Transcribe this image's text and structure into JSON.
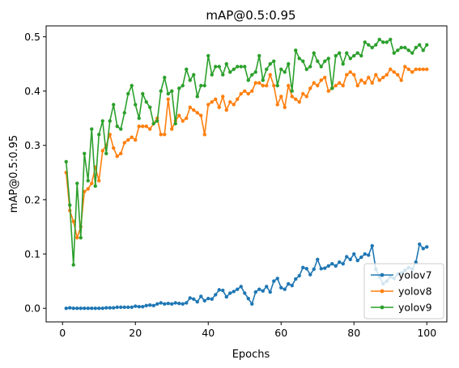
{
  "chart_data": {
    "type": "line",
    "title": "mAP@0.5:0.95",
    "xlabel": "Epochs",
    "ylabel": "mAP@0.5:0.95",
    "xlim": [
      -4.5,
      105.5
    ],
    "ylim": [
      -0.025,
      0.52
    ],
    "xticks": [
      "0",
      "20",
      "40",
      "60",
      "80",
      "100"
    ],
    "xtick_values": [
      0,
      20,
      40,
      60,
      80,
      100
    ],
    "yticks": [
      "0.0",
      "0.1",
      "0.2",
      "0.3",
      "0.4",
      "0.5"
    ],
    "ytick_values": [
      0.0,
      0.1,
      0.2,
      0.3,
      0.4,
      0.5
    ],
    "grid": false,
    "legend_position": "bottom-right",
    "x_start": 1,
    "series": [
      {
        "name": "yolov7",
        "color": "#1f77b4",
        "values": [
          0.0,
          0.001,
          0.0,
          0.0,
          0.0,
          0.0,
          0.0,
          0.0,
          0.0,
          0.0,
          0.0,
          0.001,
          0.001,
          0.001,
          0.002,
          0.002,
          0.002,
          0.002,
          0.002,
          0.004,
          0.003,
          0.003,
          0.005,
          0.006,
          0.005,
          0.008,
          0.01,
          0.008,
          0.009,
          0.008,
          0.01,
          0.009,
          0.008,
          0.01,
          0.019,
          0.017,
          0.012,
          0.022,
          0.014,
          0.018,
          0.017,
          0.025,
          0.034,
          0.033,
          0.021,
          0.028,
          0.031,
          0.035,
          0.04,
          0.028,
          0.018,
          0.008,
          0.03,
          0.035,
          0.032,
          0.04,
          0.03,
          0.05,
          0.055,
          0.038,
          0.035,
          0.045,
          0.042,
          0.054,
          0.06,
          0.075,
          0.073,
          0.062,
          0.072,
          0.09,
          0.073,
          0.074,
          0.078,
          0.082,
          0.078,
          0.085,
          0.082,
          0.095,
          0.09,
          0.1,
          0.088,
          0.094,
          0.1,
          0.098,
          0.115,
          0.072,
          0.058,
          0.045,
          0.05,
          0.058,
          0.055,
          0.063,
          0.065,
          0.07,
          0.075,
          0.072,
          0.085,
          0.118,
          0.11,
          0.113
        ]
      },
      {
        "name": "yolov8",
        "color": "#ff7f0e",
        "values": [
          0.25,
          0.18,
          0.16,
          0.13,
          0.15,
          0.215,
          0.22,
          0.23,
          0.26,
          0.235,
          0.29,
          0.3,
          0.32,
          0.295,
          0.28,
          0.285,
          0.305,
          0.31,
          0.315,
          0.31,
          0.335,
          0.335,
          0.335,
          0.33,
          0.34,
          0.35,
          0.32,
          0.32,
          0.385,
          0.33,
          0.345,
          0.355,
          0.345,
          0.35,
          0.37,
          0.365,
          0.36,
          0.355,
          0.32,
          0.375,
          0.38,
          0.385,
          0.37,
          0.39,
          0.365,
          0.38,
          0.375,
          0.385,
          0.395,
          0.4,
          0.395,
          0.4,
          0.415,
          0.415,
          0.41,
          0.41,
          0.43,
          0.41,
          0.375,
          0.39,
          0.37,
          0.41,
          0.39,
          0.385,
          0.38,
          0.395,
          0.39,
          0.405,
          0.415,
          0.41,
          0.42,
          0.425,
          0.4,
          0.405,
          0.41,
          0.415,
          0.41,
          0.43,
          0.435,
          0.43,
          0.41,
          0.42,
          0.415,
          0.425,
          0.415,
          0.43,
          0.42,
          0.425,
          0.43,
          0.44,
          0.435,
          0.43,
          0.42,
          0.445,
          0.44,
          0.435,
          0.44,
          0.44,
          0.44,
          0.44
        ]
      },
      {
        "name": "yolov9",
        "color": "#2ca02c",
        "values": [
          0.27,
          0.19,
          0.08,
          0.23,
          0.13,
          0.285,
          0.235,
          0.33,
          0.225,
          0.32,
          0.345,
          0.285,
          0.345,
          0.375,
          0.335,
          0.33,
          0.36,
          0.395,
          0.41,
          0.375,
          0.35,
          0.395,
          0.38,
          0.37,
          0.34,
          0.345,
          0.4,
          0.425,
          0.395,
          0.4,
          0.34,
          0.405,
          0.41,
          0.44,
          0.42,
          0.43,
          0.39,
          0.41,
          0.41,
          0.465,
          0.43,
          0.445,
          0.445,
          0.43,
          0.45,
          0.435,
          0.44,
          0.445,
          0.445,
          0.445,
          0.42,
          0.43,
          0.435,
          0.465,
          0.42,
          0.44,
          0.45,
          0.455,
          0.41,
          0.44,
          0.435,
          0.45,
          0.4,
          0.475,
          0.46,
          0.455,
          0.44,
          0.445,
          0.47,
          0.455,
          0.445,
          0.455,
          0.46,
          0.405,
          0.465,
          0.47,
          0.45,
          0.47,
          0.46,
          0.465,
          0.47,
          0.465,
          0.49,
          0.485,
          0.48,
          0.485,
          0.495,
          0.49,
          0.49,
          0.495,
          0.47,
          0.475,
          0.48,
          0.48,
          0.475,
          0.47,
          0.48,
          0.485,
          0.475,
          0.485
        ]
      }
    ]
  }
}
